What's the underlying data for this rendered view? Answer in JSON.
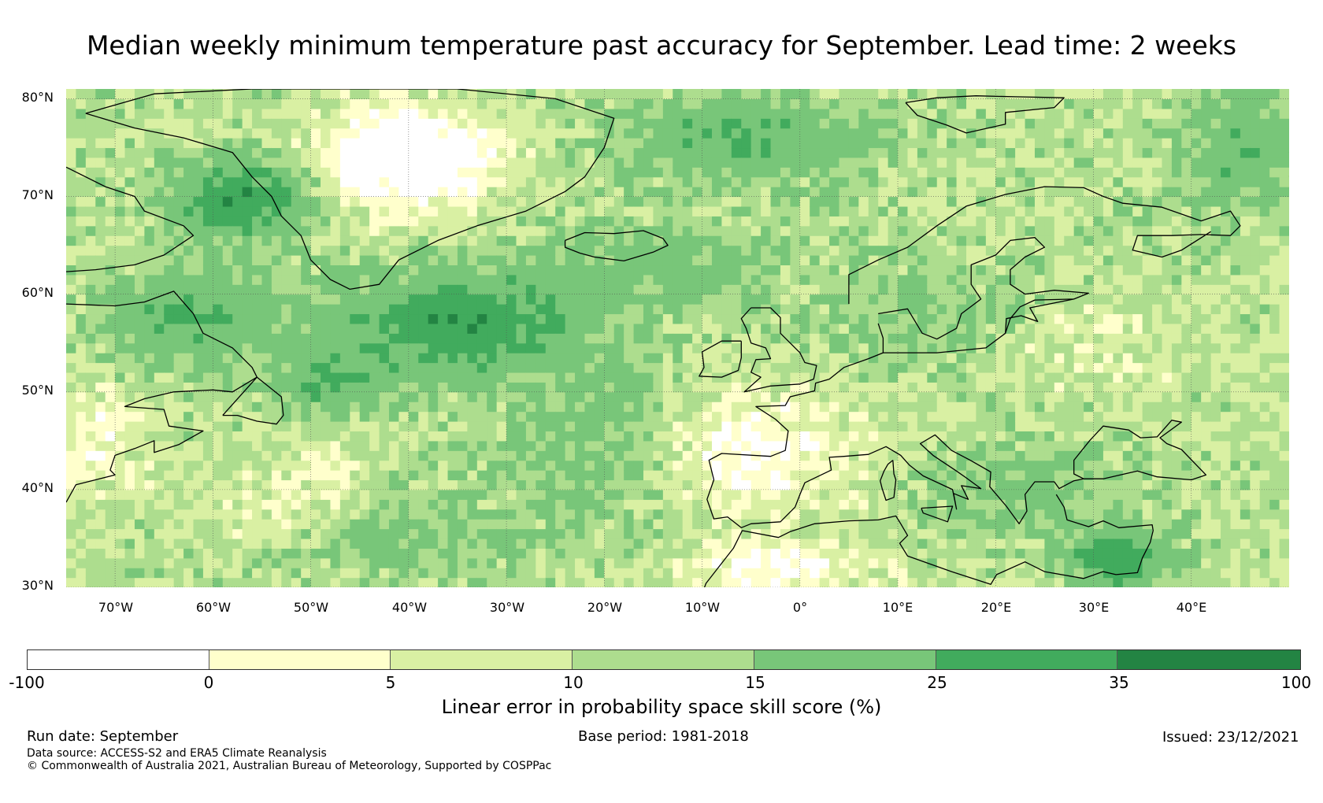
{
  "title": "Median weekly minimum temperature past accuracy for September. Lead time: 2 weeks",
  "map": {
    "projection": "Plate Carree",
    "extent_lon": [
      -75,
      50
    ],
    "extent_lat": [
      30,
      81
    ],
    "lat_labels": [
      "80°N",
      "70°N",
      "60°N",
      "50°N",
      "40°N",
      "30°N"
    ],
    "lat_values": [
      80,
      70,
      60,
      50,
      40,
      30
    ],
    "lon_labels": [
      "70°W",
      "60°W",
      "50°W",
      "40°W",
      "30°W",
      "20°W",
      "10°W",
      "0°",
      "10°E",
      "20°E",
      "30°E",
      "40°E"
    ],
    "lon_values": [
      -70,
      -60,
      -50,
      -40,
      -30,
      -20,
      -10,
      0,
      10,
      20,
      30,
      40
    ],
    "field_description": "Skill score field: highest (25-100%) over the Labrador Sea, central North Atlantic near 55N 35W, Greenland Sea and eastern Mediterranean; lowest (below 5%) over interior Greenland, Iberia/France, Labrador coast and North Africa."
  },
  "colorbar": {
    "label": "Linear error in probability space skill score (%)",
    "ticks": [
      "-100",
      "0",
      "5",
      "10",
      "15",
      "25",
      "35",
      "100"
    ],
    "bins": [
      {
        "from": -100,
        "to": 0,
        "color": "#ffffff"
      },
      {
        "from": 0,
        "to": 5,
        "color": "#ffffcc"
      },
      {
        "from": 5,
        "to": 10,
        "color": "#d9f0a3"
      },
      {
        "from": 10,
        "to": 15,
        "color": "#addd8e"
      },
      {
        "from": 15,
        "to": 25,
        "color": "#78c679"
      },
      {
        "from": 25,
        "to": 35,
        "color": "#41ab5d"
      },
      {
        "from": 35,
        "to": 100,
        "color": "#238443"
      }
    ]
  },
  "footer": {
    "run_date": "Run date: September",
    "base_period": "Base period: 1981-2018",
    "issued": "Issued: 23/12/2021",
    "data_source": "Data source: ACCESS-S2 and ERA5 Climate Reanalysis",
    "copyright": "© Commonwealth of Australia 2021, Australian Bureau of Meteorology, Supported by COSPPac"
  }
}
